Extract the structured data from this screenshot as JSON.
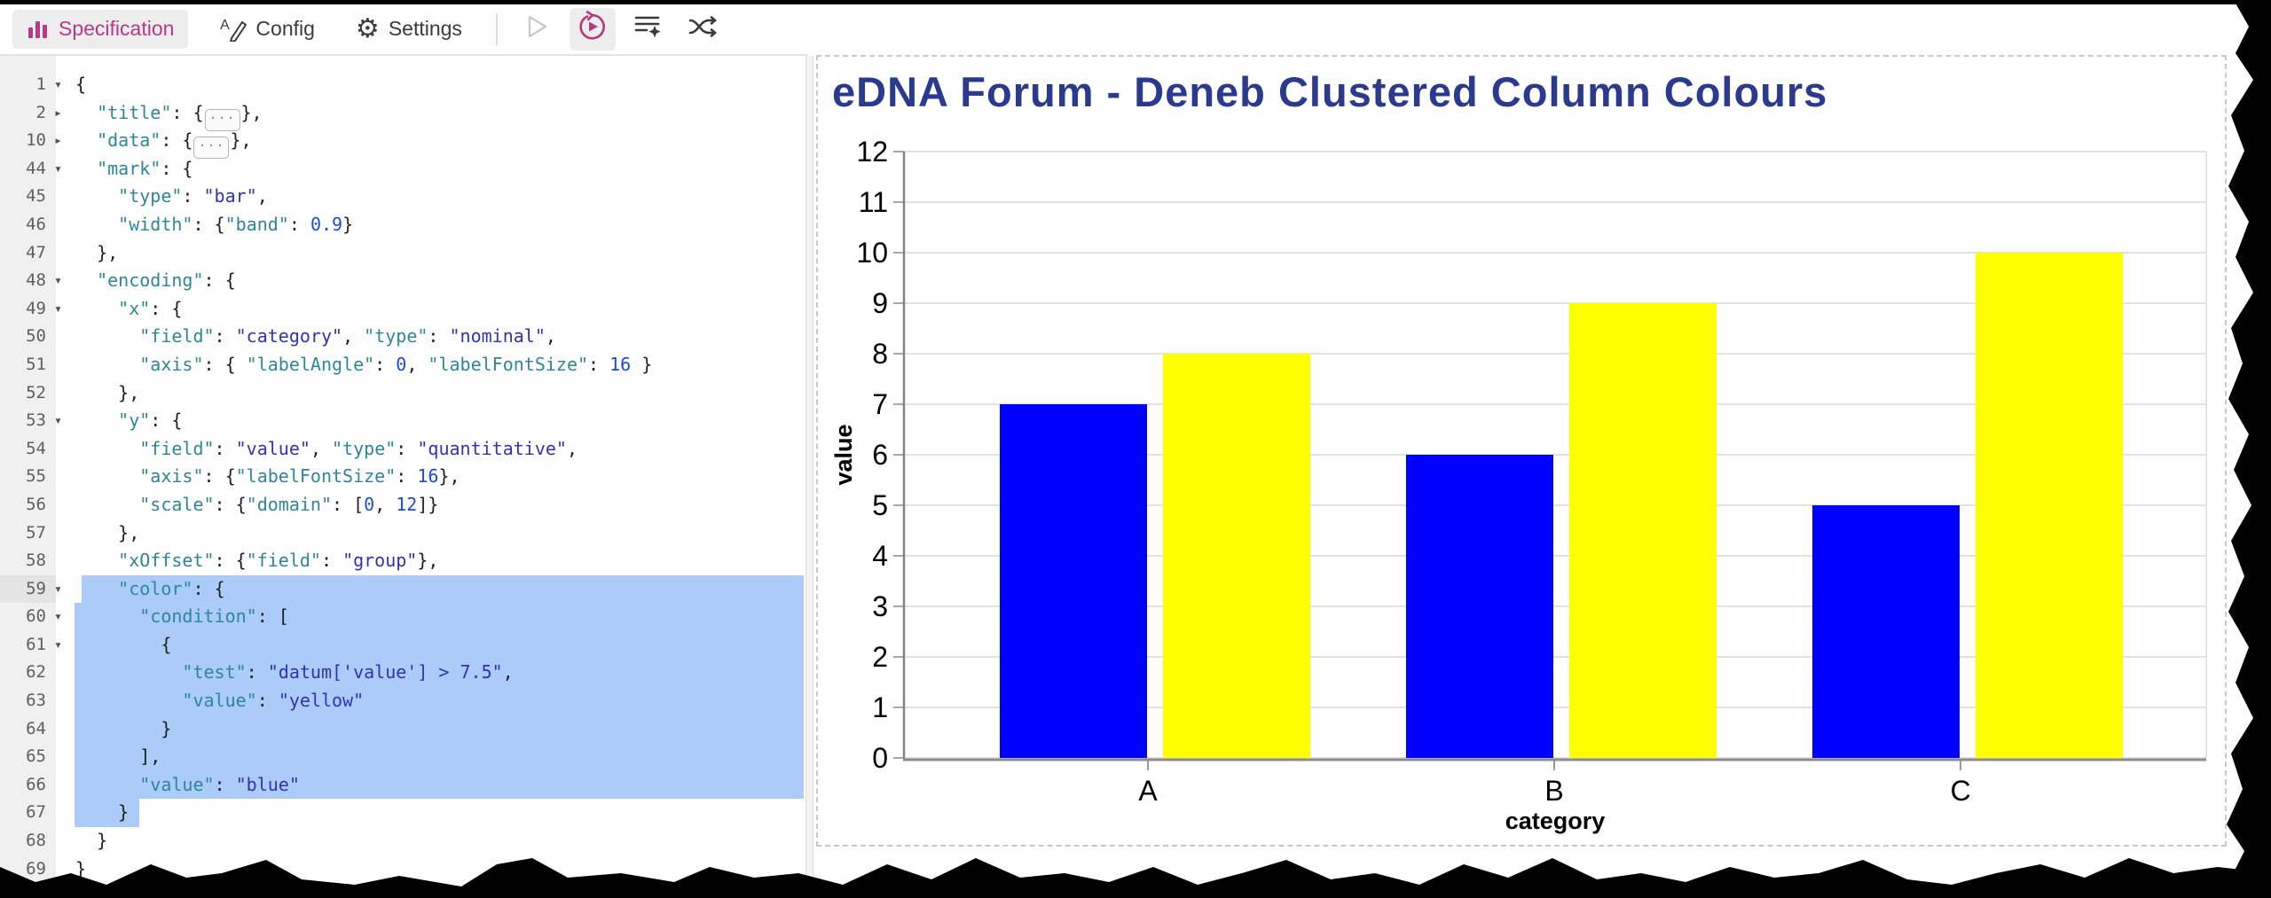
{
  "toolbar": {
    "tabs": [
      {
        "label": "Specification",
        "active": true
      },
      {
        "label": "Config",
        "active": false
      },
      {
        "label": "Settings",
        "active": false
      }
    ],
    "actions": [
      {
        "icon": "play-icon",
        "enabled": false,
        "active": false
      },
      {
        "icon": "run-auto-apply-icon",
        "enabled": true,
        "active": true
      },
      {
        "icon": "format-spec-icon",
        "enabled": true,
        "active": false
      },
      {
        "icon": "remap-fields-icon",
        "enabled": true,
        "active": false
      }
    ],
    "accent_pink": "#b23c87"
  },
  "editor": {
    "selection_color": "#abcbf8",
    "lines": [
      {
        "num": 1,
        "fold": "open",
        "seg": [
          [
            "p",
            "{"
          ]
        ]
      },
      {
        "num": 2,
        "fold": "closed",
        "seg": [
          [
            "p",
            "  "
          ],
          [
            "k",
            "\"title\""
          ],
          [
            "p",
            ": {"
          ],
          [
            "b",
            ""
          ],
          [
            "p",
            "},"
          ]
        ]
      },
      {
        "num": 10,
        "fold": "closed",
        "seg": [
          [
            "p",
            "  "
          ],
          [
            "k",
            "\"data\""
          ],
          [
            "p",
            ": {"
          ],
          [
            "b",
            ""
          ],
          [
            "p",
            "},"
          ]
        ]
      },
      {
        "num": 44,
        "fold": "open",
        "seg": [
          [
            "p",
            "  "
          ],
          [
            "k",
            "\"mark\""
          ],
          [
            "p",
            ": {"
          ]
        ]
      },
      {
        "num": 45,
        "seg": [
          [
            "p",
            "    "
          ],
          [
            "k",
            "\"type\""
          ],
          [
            "p",
            ": "
          ],
          [
            "v",
            "\"bar\""
          ],
          [
            "p",
            ","
          ]
        ]
      },
      {
        "num": 46,
        "seg": [
          [
            "p",
            "    "
          ],
          [
            "k",
            "\"width\""
          ],
          [
            "p",
            ": {"
          ],
          [
            "k",
            "\"band\""
          ],
          [
            "p",
            ": "
          ],
          [
            "n",
            "0.9"
          ],
          [
            "p",
            "}"
          ]
        ]
      },
      {
        "num": 47,
        "seg": [
          [
            "p",
            "  },"
          ]
        ]
      },
      {
        "num": 48,
        "fold": "open",
        "seg": [
          [
            "p",
            "  "
          ],
          [
            "k",
            "\"encoding\""
          ],
          [
            "p",
            ": {"
          ]
        ]
      },
      {
        "num": 49,
        "fold": "open",
        "seg": [
          [
            "p",
            "    "
          ],
          [
            "k",
            "\"x\""
          ],
          [
            "p",
            ": {"
          ]
        ]
      },
      {
        "num": 50,
        "seg": [
          [
            "p",
            "      "
          ],
          [
            "k",
            "\"field\""
          ],
          [
            "p",
            ": "
          ],
          [
            "v",
            "\"category\""
          ],
          [
            "p",
            ", "
          ],
          [
            "k",
            "\"type\""
          ],
          [
            "p",
            ": "
          ],
          [
            "v",
            "\"nominal\""
          ],
          [
            "p",
            ","
          ]
        ]
      },
      {
        "num": 51,
        "seg": [
          [
            "p",
            "      "
          ],
          [
            "k",
            "\"axis\""
          ],
          [
            "p",
            ": { "
          ],
          [
            "k",
            "\"labelAngle\""
          ],
          [
            "p",
            ": "
          ],
          [
            "n",
            "0"
          ],
          [
            "p",
            ", "
          ],
          [
            "k",
            "\"labelFontSize\""
          ],
          [
            "p",
            ": "
          ],
          [
            "n",
            "16"
          ],
          [
            "p",
            " }"
          ]
        ]
      },
      {
        "num": 52,
        "seg": [
          [
            "p",
            "    },"
          ]
        ]
      },
      {
        "num": 53,
        "fold": "open",
        "seg": [
          [
            "p",
            "    "
          ],
          [
            "k",
            "\"y\""
          ],
          [
            "p",
            ": {"
          ]
        ]
      },
      {
        "num": 54,
        "seg": [
          [
            "p",
            "      "
          ],
          [
            "k",
            "\"field\""
          ],
          [
            "p",
            ": "
          ],
          [
            "v",
            "\"value\""
          ],
          [
            "p",
            ", "
          ],
          [
            "k",
            "\"type\""
          ],
          [
            "p",
            ": "
          ],
          [
            "v",
            "\"quantitative\""
          ],
          [
            "p",
            ","
          ]
        ]
      },
      {
        "num": 55,
        "seg": [
          [
            "p",
            "      "
          ],
          [
            "k",
            "\"axis\""
          ],
          [
            "p",
            ": {"
          ],
          [
            "k",
            "\"labelFontSize\""
          ],
          [
            "p",
            ": "
          ],
          [
            "n",
            "16"
          ],
          [
            "p",
            "},"
          ]
        ]
      },
      {
        "num": 56,
        "seg": [
          [
            "p",
            "      "
          ],
          [
            "k",
            "\"scale\""
          ],
          [
            "p",
            ": {"
          ],
          [
            "k",
            "\"domain\""
          ],
          [
            "p",
            ": ["
          ],
          [
            "n",
            "0"
          ],
          [
            "p",
            ", "
          ],
          [
            "n",
            "12"
          ],
          [
            "p",
            "]}"
          ]
        ]
      },
      {
        "num": 57,
        "seg": [
          [
            "p",
            "    },"
          ]
        ]
      },
      {
        "num": 58,
        "seg": [
          [
            "p",
            "    "
          ],
          [
            "k",
            "\"xOffset\""
          ],
          [
            "p",
            ": {"
          ],
          [
            "k",
            "\"field\""
          ],
          [
            "p",
            ": "
          ],
          [
            "v",
            "\"group\""
          ],
          [
            "p",
            "},"
          ]
        ]
      },
      {
        "num": 59,
        "fold": "open",
        "sel": true,
        "cur": true,
        "seg": [
          [
            "p",
            "    "
          ],
          [
            "k",
            "\"color\""
          ],
          [
            "p",
            ": {"
          ]
        ]
      },
      {
        "num": 60,
        "fold": "open",
        "sel": true,
        "seg": [
          [
            "p",
            "      "
          ],
          [
            "k",
            "\"condition\""
          ],
          [
            "p",
            ": ["
          ]
        ]
      },
      {
        "num": 61,
        "fold": "open",
        "sel": true,
        "seg": [
          [
            "p",
            "        {"
          ]
        ]
      },
      {
        "num": 62,
        "sel": true,
        "seg": [
          [
            "p",
            "          "
          ],
          [
            "k",
            "\"test\""
          ],
          [
            "p",
            ": "
          ],
          [
            "v",
            "\"datum['value'] > 7.5\""
          ],
          [
            "p",
            ","
          ]
        ]
      },
      {
        "num": 63,
        "sel": true,
        "seg": [
          [
            "p",
            "          "
          ],
          [
            "k",
            "\"value\""
          ],
          [
            "p",
            ": "
          ],
          [
            "v",
            "\"yellow\""
          ]
        ]
      },
      {
        "num": 64,
        "sel": true,
        "seg": [
          [
            "p",
            "        }"
          ]
        ]
      },
      {
        "num": 65,
        "sel": true,
        "seg": [
          [
            "p",
            "      ],"
          ]
        ]
      },
      {
        "num": 66,
        "sel": true,
        "seg": [
          [
            "p",
            "      "
          ],
          [
            "k",
            "\"value\""
          ],
          [
            "p",
            ": "
          ],
          [
            "v",
            "\"blue\""
          ]
        ]
      },
      {
        "num": 67,
        "sel": "partial",
        "seg": [
          [
            "p",
            "    }"
          ]
        ]
      },
      {
        "num": 68,
        "seg": [
          [
            "p",
            "  }"
          ]
        ]
      },
      {
        "num": 69,
        "seg": [
          [
            "p",
            "}"
          ]
        ]
      }
    ]
  },
  "chart_data": {
    "type": "bar",
    "title": "eDNA Forum - Deneb Clustered Column Colours",
    "title_color": "#2b3a8f",
    "categories": [
      "A",
      "B",
      "C"
    ],
    "series": [
      {
        "values": [
          7,
          6,
          5
        ]
      },
      {
        "values": [
          8,
          9,
          10
        ]
      }
    ],
    "xlabel": "category",
    "ylabel": "value",
    "ylim": [
      0,
      12
    ],
    "ytick_step": 1,
    "grid": true,
    "legend": "none",
    "color_rule": {
      "test": "datum['value'] > 7.5",
      "threshold": 7.5,
      "above": "yellow",
      "below": "blue"
    },
    "colors": {
      "blue": "#0000ff",
      "yellow": "#ffff00"
    }
  }
}
